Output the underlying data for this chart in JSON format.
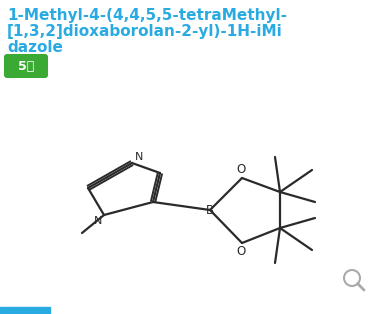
{
  "title_line1": "1-Methyl-4-(4,4,5,5-tetraMethyl-",
  "title_line2": "[1,3,2]dioxaborolan-2-yl)-1H-iMi",
  "title_line3": "dazole",
  "title_color": "#29ABE2",
  "badge_text": "5级",
  "badge_bg": "#3aaa35",
  "badge_text_color": "#ffffff",
  "bg_color": "#ffffff",
  "mol_color": "#2a2a2a",
  "search_icon_color": "#aaaaaa",
  "bottom_bar_color": "#29ABE2"
}
